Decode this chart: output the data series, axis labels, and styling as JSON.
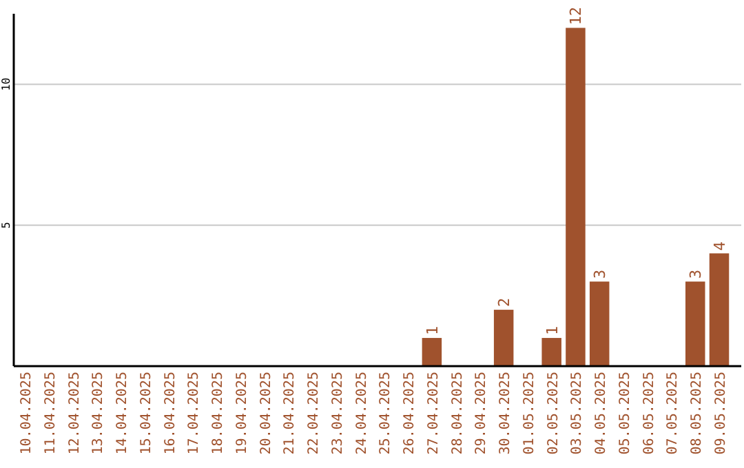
{
  "chart_data": {
    "type": "bar",
    "categories": [
      "10.04.2025",
      "11.04.2025",
      "12.04.2025",
      "13.04.2025",
      "14.04.2025",
      "15.04.2025",
      "16.04.2025",
      "17.04.2025",
      "18.04.2025",
      "19.04.2025",
      "20.04.2025",
      "21.04.2025",
      "22.04.2025",
      "23.04.2025",
      "24.04.2025",
      "25.04.2025",
      "26.04.2025",
      "27.04.2025",
      "28.04.2025",
      "29.04.2025",
      "30.04.2025",
      "01.05.2025",
      "02.05.2025",
      "03.05.2025",
      "04.05.2025",
      "05.05.2025",
      "06.05.2025",
      "07.05.2025",
      "08.05.2025",
      "09.05.2025"
    ],
    "values": [
      0,
      0,
      0,
      0,
      0,
      0,
      0,
      0,
      0,
      0,
      0,
      0,
      0,
      0,
      0,
      0,
      0,
      1,
      0,
      0,
      2,
      0,
      1,
      12,
      3,
      0,
      0,
      0,
      3,
      4
    ],
    "value_labels": [
      null,
      null,
      null,
      null,
      null,
      null,
      null,
      null,
      null,
      null,
      null,
      null,
      null,
      null,
      null,
      null,
      null,
      "1",
      null,
      null,
      "2",
      null,
      "1",
      "12",
      "3",
      null,
      null,
      null,
      "3",
      "4"
    ],
    "color": "#a0522d",
    "ylim": [
      0,
      12.5
    ],
    "yticks": [
      5,
      10
    ],
    "grid": "y"
  }
}
